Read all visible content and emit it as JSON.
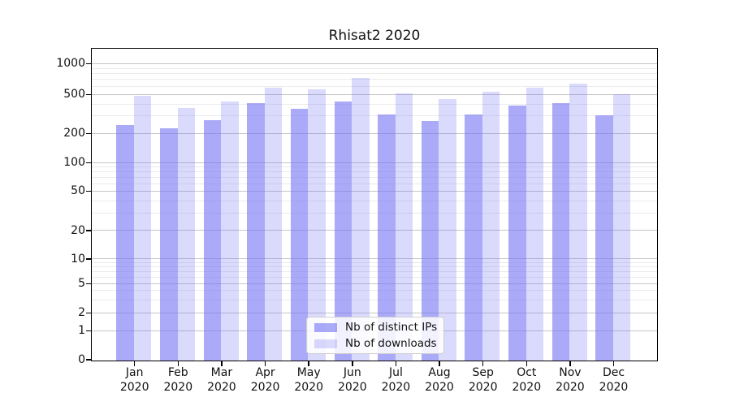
{
  "title": "Rhisat2 2020",
  "chart_data": {
    "type": "bar",
    "title": "Rhisat2 2020",
    "categories": [
      "Jan 2020",
      "Feb 2020",
      "Mar 2020",
      "Apr 2020",
      "May 2020",
      "Jun 2020",
      "Jul 2020",
      "Aug 2020",
      "Sep 2020",
      "Oct 2020",
      "Nov 2020",
      "Dec 2020"
    ],
    "series": [
      {
        "name": "Nb of distinct IPs",
        "color": "#a9a9f8",
        "values": [
          250,
          230,
          280,
          420,
          365,
          435,
          320,
          275,
          320,
          395,
          415,
          310
        ]
      },
      {
        "name": "Nb of downloads",
        "color": "#dadaf9",
        "values": [
          500,
          370,
          430,
          600,
          570,
          735,
          520,
          460,
          540,
          590,
          650,
          510
        ]
      }
    ],
    "xlabel": "",
    "ylabel": "",
    "yscale": "symlog",
    "ylim": [
      0,
      1400
    ],
    "y_ticks": [
      0,
      1,
      2,
      5,
      10,
      20,
      50,
      100,
      200,
      500,
      1000
    ],
    "y_minor_gridlines": [
      3,
      4,
      6,
      7,
      8,
      9,
      30,
      40,
      60,
      70,
      80,
      90,
      300,
      400,
      600,
      700,
      800,
      900
    ],
    "grid": true,
    "legend_position": "inside bottom-center"
  }
}
